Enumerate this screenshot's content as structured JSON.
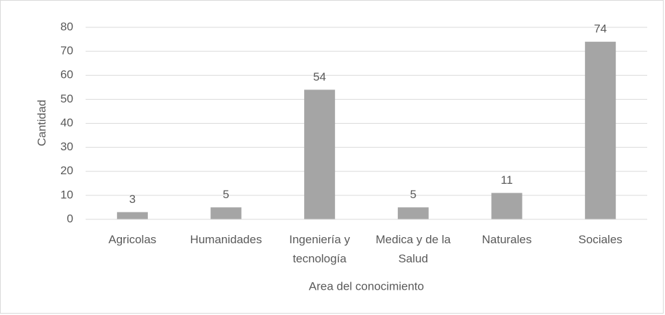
{
  "chart_data": {
    "type": "bar",
    "x_label": "Area del conocimiento",
    "y_label": "Cantidad",
    "categories": [
      "Agricolas",
      "Humanidades",
      "Ingeniería y tecnología",
      "Medica y de la Salud",
      "Naturales",
      "Sociales"
    ],
    "values": [
      3,
      5,
      54,
      5,
      11,
      74
    ],
    "color": "#a5a5a5",
    "ylim": [
      0,
      80
    ],
    "yticks": [
      0,
      10,
      20,
      30,
      40,
      50,
      60,
      70,
      80
    ],
    "grid": true
  }
}
